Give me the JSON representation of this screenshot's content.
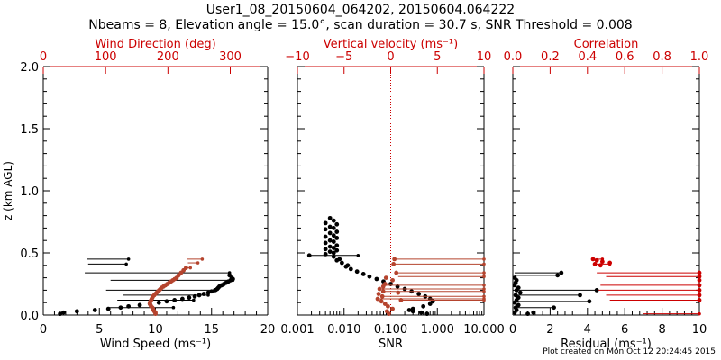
{
  "header": {
    "title": "User1_08_20150604_064202, 20150604.064222",
    "subtitle": "Nbeams = 8, Elevation angle = 15.0°, scan duration = 30.7 s, SNR Threshold = 0.008"
  },
  "footer": {
    "plot_created": "Plot created on Mon Oct 12 20:24:45 2015"
  },
  "colors": {
    "black": "#000000",
    "red": "#cc0000",
    "brown": "#b5442e"
  },
  "chart_data": [
    {
      "type": "scatter",
      "name": "wind-panel",
      "ylabel": "z (km AGL)",
      "ylim": [
        0,
        2.0
      ],
      "y_ticks": [
        "0.0",
        "0.5",
        "1.0",
        "1.5",
        "2.0"
      ],
      "bottom_axis": {
        "label": "Wind Speed (ms⁻¹)",
        "xlim": [
          0,
          20
        ],
        "ticks": [
          "0",
          "5",
          "10",
          "15",
          "20"
        ]
      },
      "top_axis": {
        "label": "Wind Direction (deg)",
        "xlim": [
          0,
          360
        ],
        "ticks": [
          "0",
          "100",
          "200",
          "300"
        ]
      },
      "series": [
        {
          "name": "Wind Speed",
          "axis": "bottom",
          "color": "#000000",
          "points": [
            [
              1.5,
              0.01
            ],
            [
              1.8,
              0.02
            ],
            [
              3.0,
              0.03
            ],
            [
              4.6,
              0.04
            ],
            [
              5.8,
              0.05
            ],
            [
              6.9,
              0.06
            ],
            [
              7.6,
              0.07
            ],
            [
              8.6,
              0.08
            ],
            [
              9.5,
              0.09
            ],
            [
              10.3,
              0.1
            ],
            [
              11.0,
              0.11
            ],
            [
              11.7,
              0.12
            ],
            [
              12.4,
              0.13
            ],
            [
              13.0,
              0.14
            ],
            [
              13.5,
              0.15
            ],
            [
              13.9,
              0.16
            ],
            [
              14.3,
              0.17
            ],
            [
              14.7,
              0.18
            ],
            [
              15.0,
              0.19
            ],
            [
              15.3,
              0.2
            ],
            [
              15.5,
              0.21
            ],
            [
              15.6,
              0.22
            ],
            [
              15.7,
              0.23
            ],
            [
              15.9,
              0.24
            ],
            [
              16.1,
              0.25
            ],
            [
              16.3,
              0.26
            ],
            [
              16.5,
              0.27
            ],
            [
              16.7,
              0.28
            ],
            [
              16.9,
              0.29
            ],
            [
              16.8,
              0.3
            ],
            [
              16.6,
              0.32
            ]
          ],
          "segments": [
            [
              3.9,
              0.45,
              7.6,
              0.45
            ],
            [
              4.0,
              0.41,
              7.4,
              0.41
            ],
            [
              3.7,
              0.34,
              16.6,
              0.34
            ],
            [
              6.0,
              0.28,
              16.9,
              0.28
            ],
            [
              5.6,
              0.2,
              15.4,
              0.2
            ],
            [
              7.1,
              0.16,
              14.7,
              0.16
            ],
            [
              6.6,
              0.12,
              13.4,
              0.12
            ],
            [
              5.9,
              0.06,
              11.6,
              0.06
            ]
          ]
        },
        {
          "name": "Wind Direction",
          "axis": "top",
          "color": "#b5442e",
          "points": [
            [
              180,
              0.01
            ],
            [
              180,
              0.02
            ],
            [
              178,
              0.03
            ],
            [
              177,
              0.04
            ],
            [
              176,
              0.05
            ],
            [
              175,
              0.06
            ],
            [
              173,
              0.07
            ],
            [
              172,
              0.08
            ],
            [
              171,
              0.09
            ],
            [
              171,
              0.1
            ],
            [
              172,
              0.11
            ],
            [
              173,
              0.12
            ],
            [
              174,
              0.13
            ],
            [
              175,
              0.14
            ],
            [
              176,
              0.15
            ],
            [
              178,
              0.16
            ],
            [
              180,
              0.17
            ],
            [
              182,
              0.18
            ],
            [
              184,
              0.19
            ],
            [
              186,
              0.2
            ],
            [
              188,
              0.21
            ],
            [
              190,
              0.22
            ],
            [
              193,
              0.23
            ],
            [
              196,
              0.24
            ],
            [
              199,
              0.25
            ],
            [
              202,
              0.26
            ],
            [
              205,
              0.27
            ],
            [
              208,
              0.28
            ],
            [
              211,
              0.29
            ],
            [
              214,
              0.3
            ],
            [
              217,
              0.32
            ],
            [
              221,
              0.34
            ],
            [
              225,
              0.36
            ],
            [
              229,
              0.38
            ]
          ],
          "segments": [
            [
              230,
              0.45,
              255,
              0.45
            ],
            [
              232,
              0.42,
              248,
              0.42
            ],
            [
              226,
              0.38,
              236,
              0.38
            ]
          ]
        }
      ]
    },
    {
      "type": "scatter",
      "name": "snr-panel",
      "ylim": [
        0,
        2.0
      ],
      "bottom_axis": {
        "label": "SNR",
        "scale": "log",
        "xlim": [
          0.001,
          10
        ],
        "ticks": [
          "0.001",
          "0.010",
          "0.100",
          "1.000",
          "10.000"
        ]
      },
      "top_axis": {
        "label": "Vertical velocity (ms⁻¹)",
        "xlim": [
          -10,
          10
        ],
        "ticks": [
          "−10",
          "−5",
          "0",
          "5",
          "10"
        ],
        "zero_line": 0
      },
      "series": [
        {
          "name": "SNR",
          "axis": "bottom",
          "color": "#000000",
          "points": [
            [
              0.005,
              0.78
            ],
            [
              0.006,
              0.76
            ],
            [
              0.004,
              0.74
            ],
            [
              0.007,
              0.73
            ],
            [
              0.005,
              0.71
            ],
            [
              0.006,
              0.7
            ],
            [
              0.004,
              0.69
            ],
            [
              0.007,
              0.67
            ],
            [
              0.005,
              0.66
            ],
            [
              0.006,
              0.64
            ],
            [
              0.004,
              0.63
            ],
            [
              0.007,
              0.62
            ],
            [
              0.005,
              0.6
            ],
            [
              0.006,
              0.59
            ],
            [
              0.004,
              0.58
            ],
            [
              0.007,
              0.56
            ],
            [
              0.005,
              0.55
            ],
            [
              0.006,
              0.54
            ],
            [
              0.004,
              0.53
            ],
            [
              0.007,
              0.52
            ],
            [
              0.005,
              0.51
            ],
            [
              0.006,
              0.5
            ],
            [
              0.004,
              0.49
            ],
            [
              0.0018,
              0.48
            ],
            [
              0.006,
              0.47
            ],
            [
              0.008,
              0.45
            ],
            [
              0.007,
              0.44
            ],
            [
              0.009,
              0.42
            ],
            [
              0.012,
              0.4
            ],
            [
              0.011,
              0.39
            ],
            [
              0.014,
              0.37
            ],
            [
              0.019,
              0.35
            ],
            [
              0.026,
              0.33
            ],
            [
              0.035,
              0.31
            ],
            [
              0.05,
              0.29
            ],
            [
              0.07,
              0.27
            ],
            [
              0.1,
              0.25
            ],
            [
              0.14,
              0.23
            ],
            [
              0.2,
              0.21
            ],
            [
              0.28,
              0.19
            ],
            [
              0.4,
              0.17
            ],
            [
              0.55,
              0.15
            ],
            [
              0.7,
              0.13
            ],
            [
              0.8,
              0.11
            ],
            [
              0.7,
              0.09
            ],
            [
              0.5,
              0.07
            ],
            [
              0.3,
              0.05
            ],
            [
              0.25,
              0.04
            ],
            [
              0.3,
              0.03
            ],
            [
              0.45,
              0.02
            ],
            [
              0.6,
              0.01
            ]
          ],
          "segments": [
            [
              0.0018,
              0.48,
              0.02,
              0.48
            ]
          ]
        },
        {
          "name": "Vertical velocity",
          "axis": "top",
          "color": "#b5442e",
          "points": [
            [
              0.4,
              0.45
            ],
            [
              0.3,
              0.41
            ],
            [
              0.6,
              0.34
            ],
            [
              0.2,
              0.28
            ],
            [
              -0.6,
              0.25
            ],
            [
              -0.8,
              0.23
            ],
            [
              -1.2,
              0.21
            ],
            [
              -0.8,
              0.19
            ],
            [
              -1.3,
              0.17
            ],
            [
              -0.9,
              0.15
            ],
            [
              -1.4,
              0.13
            ],
            [
              -1.0,
              0.11
            ],
            [
              -0.6,
              0.09
            ],
            [
              -0.3,
              0.07
            ],
            [
              0.2,
              0.05
            ],
            [
              -0.4,
              0.03
            ],
            [
              -0.2,
              0.01
            ],
            [
              1.1,
              0.12
            ],
            [
              0.8,
              0.18
            ],
            [
              -0.5,
              0.3
            ]
          ],
          "segments": [
            [
              0.4,
              0.45,
              10,
              0.45
            ],
            [
              0.3,
              0.41,
              10,
              0.41
            ],
            [
              0.6,
              0.34,
              10,
              0.34
            ],
            [
              0.8,
              0.31,
              10,
              0.31
            ],
            [
              -0.8,
              0.24,
              10,
              0.24
            ],
            [
              -1.2,
              0.21,
              10,
              0.21
            ],
            [
              -1.0,
              0.19,
              10,
              0.19
            ],
            [
              -0.9,
              0.15,
              10,
              0.15
            ],
            [
              -1.4,
              0.13,
              10,
              0.13
            ],
            [
              1.1,
              0.12,
              10,
              0.12
            ]
          ]
        }
      ]
    },
    {
      "type": "scatter",
      "name": "residual-panel",
      "ylim": [
        0,
        2.0
      ],
      "bottom_axis": {
        "label": "Residual (ms⁻¹)",
        "xlim": [
          0,
          10
        ],
        "ticks": [
          "0",
          "2",
          "4",
          "6",
          "8",
          "10"
        ]
      },
      "top_axis": {
        "label": "Correlation",
        "xlim": [
          0,
          1.0
        ],
        "ticks": [
          "0.0",
          "0.2",
          "0.4",
          "0.6",
          "0.8",
          "1.0"
        ]
      },
      "series": [
        {
          "name": "Residual",
          "axis": "bottom",
          "color": "#000000",
          "points": [
            [
              0.1,
              0.3
            ],
            [
              0.2,
              0.28
            ],
            [
              0.15,
              0.26
            ],
            [
              0.1,
              0.24
            ],
            [
              0.3,
              0.22
            ],
            [
              0.2,
              0.2
            ],
            [
              0.4,
              0.18
            ],
            [
              0.15,
              0.16
            ],
            [
              0.3,
              0.14
            ],
            [
              0.2,
              0.12
            ],
            [
              0.1,
              0.1
            ],
            [
              0.3,
              0.08
            ],
            [
              0.15,
              0.06
            ],
            [
              0.2,
              0.04
            ],
            [
              0.1,
              0.02
            ],
            [
              0.8,
              0.01
            ],
            [
              2.6,
              0.34
            ],
            [
              2.4,
              0.32
            ],
            [
              4.5,
              0.2
            ],
            [
              3.6,
              0.16
            ],
            [
              4.1,
              0.11
            ],
            [
              2.2,
              0.06
            ],
            [
              1.1,
              0.02
            ]
          ],
          "segments": [
            [
              0.1,
              0.34,
              2.6,
              0.34
            ],
            [
              0.1,
              0.32,
              2.4,
              0.32
            ],
            [
              0.1,
              0.2,
              4.5,
              0.2
            ],
            [
              0.1,
              0.16,
              3.6,
              0.16
            ],
            [
              0.1,
              0.11,
              4.1,
              0.11
            ],
            [
              0.1,
              0.06,
              2.2,
              0.06
            ]
          ]
        },
        {
          "name": "Correlation",
          "axis": "top",
          "color": "#cc0000",
          "points": [
            [
              0.43,
              0.45
            ],
            [
              0.45,
              0.44
            ],
            [
              0.48,
              0.43
            ],
            [
              0.52,
              0.42
            ],
            [
              0.44,
              0.41
            ],
            [
              0.47,
              0.4
            ],
            [
              1.0,
              0.34
            ],
            [
              1.0,
              0.31
            ],
            [
              1.0,
              0.28
            ],
            [
              1.0,
              0.24
            ],
            [
              1.0,
              0.2
            ],
            [
              1.0,
              0.16
            ],
            [
              1.0,
              0.12
            ]
          ],
          "segments": [
            [
              0.43,
              0.45,
              0.48,
              0.45
            ],
            [
              0.44,
              0.41,
              0.52,
              0.41
            ],
            [
              0.45,
              0.34,
              1.0,
              0.34
            ],
            [
              0.5,
              0.31,
              1.0,
              0.31
            ],
            [
              0.47,
              0.24,
              1.0,
              0.24
            ],
            [
              0.46,
              0.2,
              1.0,
              0.2
            ],
            [
              0.5,
              0.16,
              1.0,
              0.16
            ],
            [
              0.52,
              0.12,
              1.0,
              0.12
            ],
            [
              0.7,
              0.01,
              1.0,
              0.01
            ]
          ]
        }
      ]
    }
  ]
}
